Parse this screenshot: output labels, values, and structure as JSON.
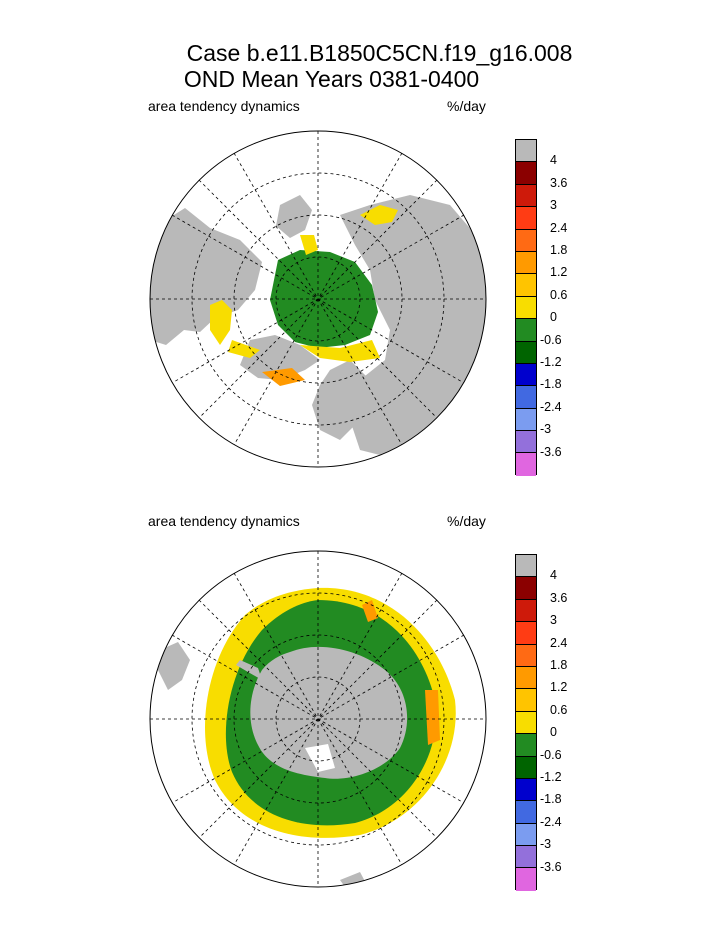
{
  "title": {
    "line1": "Case b.e11.B1850C5CN.f19_g16.008",
    "line2": "OND Mean   Years 0381-0400"
  },
  "panels": [
    {
      "hemisphere": "north",
      "left_label": "area tendency dynamics",
      "right_label": "%/day"
    },
    {
      "hemisphere": "south",
      "left_label": "area tendency dynamics",
      "right_label": "%/day"
    }
  ],
  "colorbar": {
    "colors": [
      "#b9b9b9",
      "#8b0000",
      "#ce1a0a",
      "#ff3c14",
      "#ff6a14",
      "#ff9a00",
      "#ffc400",
      "#f8dd00",
      "#228b22",
      "#006400",
      "#0000cd",
      "#4169e1",
      "#7b9cf0",
      "#9370db",
      "#e066e0"
    ],
    "labels": [
      "4",
      "3.6",
      "3",
      "2.4",
      "1.8",
      "1.2",
      "0.6",
      "0",
      "-0.6",
      "-1.2",
      "-1.8",
      "-2.4",
      "-3",
      "-3.6"
    ]
  },
  "legend_colors": {
    "land": "#b9b9b9",
    "ocean": "#ffffff",
    "ice_negative": "#228b22",
    "ice_positive": "#f8dd00"
  }
}
